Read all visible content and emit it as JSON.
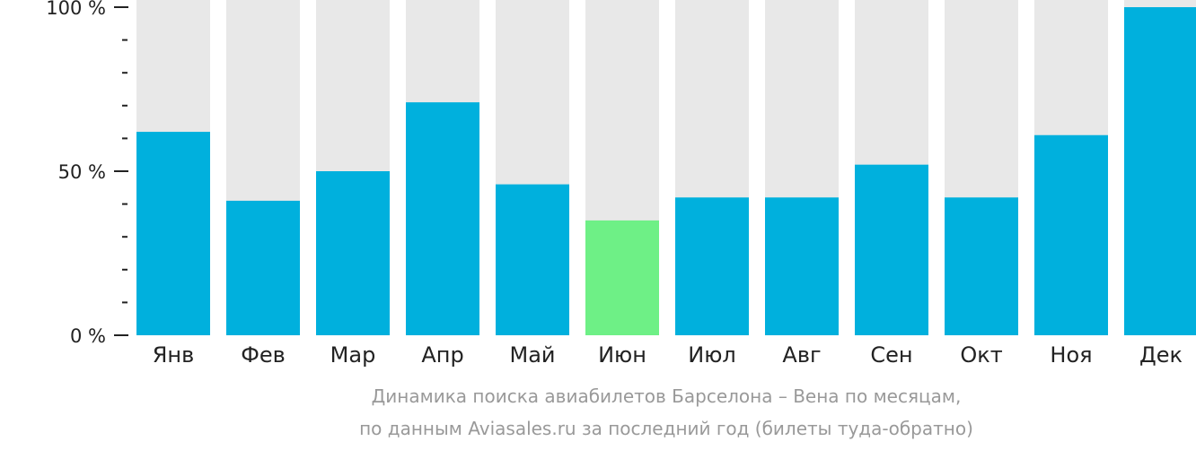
{
  "chart_data": {
    "type": "bar",
    "categories": [
      "Янв",
      "Фев",
      "Мар",
      "Апр",
      "Май",
      "Июн",
      "Июл",
      "Авг",
      "Сен",
      "Окт",
      "Ноя",
      "Дек"
    ],
    "values": [
      62,
      41,
      50,
      71,
      46,
      35,
      42,
      42,
      52,
      42,
      61,
      100
    ],
    "highlight_index": 5,
    "ylim": [
      0,
      100
    ],
    "yticks": [
      {
        "value": 0,
        "label": "0 %"
      },
      {
        "value": 50,
        "label": "50 %"
      },
      {
        "value": 100,
        "label": "100 %"
      }
    ],
    "caption_line1": "Динамика поиска авиабилетов Барселона – Вена по месяцам,",
    "caption_line2": "по данным Aviasales.ru за последний год (билеты туда-обратно)",
    "colors": {
      "bar": "#00b0dd",
      "highlight": "#6ef086",
      "background_bar": "#e8e8e8",
      "axis": "#222222",
      "caption": "#999999"
    }
  }
}
